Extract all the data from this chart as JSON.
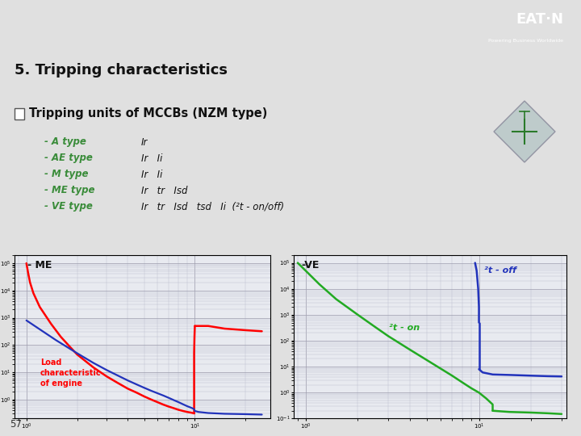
{
  "title": "5. Tripping characteristics",
  "subtitle": "Tripping units of MCCBs (NZM type)",
  "bg_color": "#e0e0e0",
  "header_bg": "#1b56a0",
  "subheader_bg": "#d2d2d2",
  "title_color": "#222222",
  "green_color": "#3a8c3a",
  "page_number": "57",
  "types": [
    {
      "name": "- A type",
      "params": "Ir"
    },
    {
      "name": "- AE type",
      "params": "Ir   Ii"
    },
    {
      "name": "- M type",
      "params": "Ir   Ii"
    },
    {
      "name": "- ME type",
      "params": "Ir   tr   Isd"
    },
    {
      "name": "- VE type",
      "params": "Ir   tr   Isd   tsd   Ii  (²t - on/off)"
    }
  ],
  "chart1_label": "- ME",
  "chart2_label": "-VE",
  "chart2_label2": "²t - off",
  "chart2_label3": "²t - on",
  "chart1_annotation": "Load\ncharacteristic\nof engine",
  "eaton_blue": "#1b56a0",
  "chart_bg": "#e8eaf0",
  "grid_color": "#9999aa",
  "grid_minor_color": "#bbbbcc"
}
